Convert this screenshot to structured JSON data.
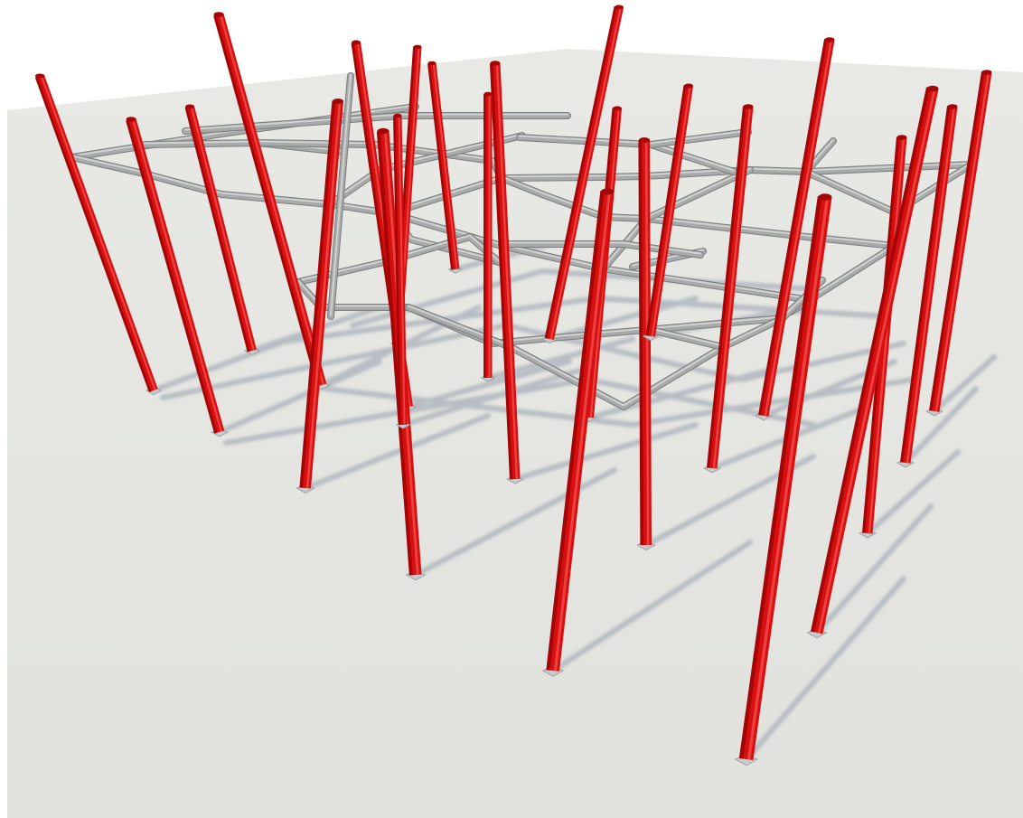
{
  "scene": {
    "subject": "structural-frame-render",
    "colors": {
      "background": "#ffffff",
      "ground": "#e3e4df",
      "ground_edge": "#d6d8d2",
      "column": "#d80f0f",
      "column_highlight": "#f04a4a",
      "column_dark": "#a20606",
      "column_ghost": "#e58a90",
      "beam": "#a7aaa9",
      "beam_highlight": "#d9dbda",
      "beam_dark": "#7b7e7e",
      "shadow": "#a9b0ba",
      "base_plate": "#c8cbcc"
    }
  }
}
